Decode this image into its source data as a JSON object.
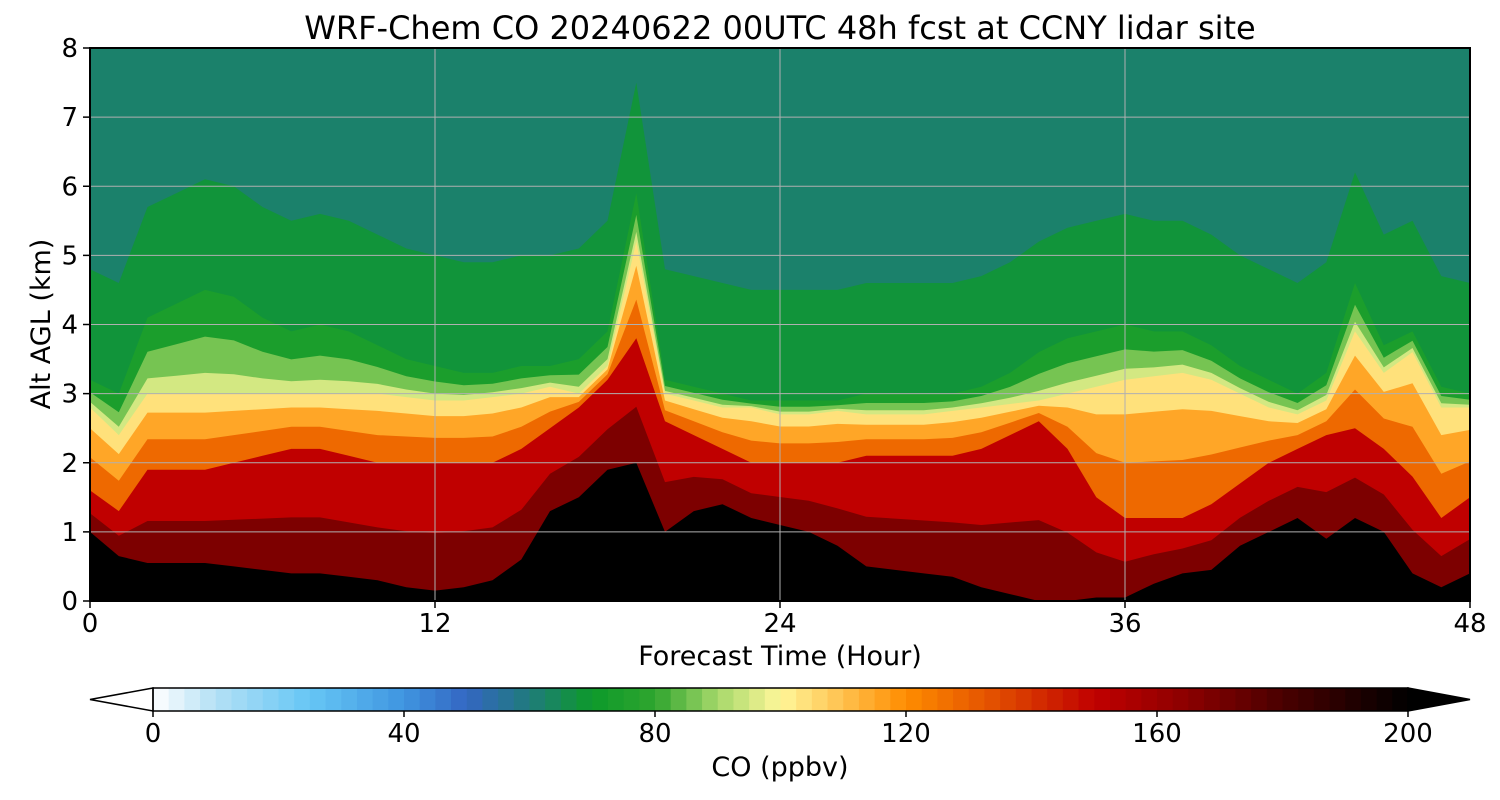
{
  "chart_data": {
    "type": "heatmap",
    "title": "WRF-Chem CO  20240622 00UTC 48h fcst at CCNY lidar site",
    "xlabel": "Forecast Time (Hour)",
    "ylabel": "Alt AGL (km)",
    "xlim": [
      0,
      48
    ],
    "ylim": [
      0,
      8
    ],
    "x_ticks": [
      "0",
      "12",
      "24",
      "36",
      "48"
    ],
    "y_ticks": [
      "0",
      "1",
      "2",
      "3",
      "4",
      "5",
      "6",
      "7",
      "8"
    ],
    "grid": true,
    "colorbar": {
      "label": "CO  (ppbv)",
      "range": [
        0,
        200
      ],
      "ticks": [
        "0",
        "40",
        "80",
        "120",
        "160",
        "200"
      ],
      "extend": "both",
      "stops": [
        {
          "value": 0,
          "color": "#ffffff"
        },
        {
          "value": 10,
          "color": "#b3e0f5"
        },
        {
          "value": 25,
          "color": "#66c6f5"
        },
        {
          "value": 40,
          "color": "#3f95e0"
        },
        {
          "value": 50,
          "color": "#3366c2"
        },
        {
          "value": 60,
          "color": "#1f7b7b"
        },
        {
          "value": 70,
          "color": "#0d9a2a"
        },
        {
          "value": 80,
          "color": "#2fa52f"
        },
        {
          "value": 90,
          "color": "#a6d86a"
        },
        {
          "value": 100,
          "color": "#fff79a"
        },
        {
          "value": 110,
          "color": "#ffc04d"
        },
        {
          "value": 120,
          "color": "#ff8c00"
        },
        {
          "value": 135,
          "color": "#e04a00"
        },
        {
          "value": 150,
          "color": "#c00000"
        },
        {
          "value": 165,
          "color": "#8a0000"
        },
        {
          "value": 180,
          "color": "#4a0000"
        },
        {
          "value": 200,
          "color": "#000000"
        }
      ]
    },
    "field": {
      "x_hours": [
        0,
        1,
        2,
        3,
        4,
        5,
        6,
        7,
        8,
        9,
        10,
        11,
        12,
        13,
        14,
        15,
        16,
        17,
        18,
        19,
        20,
        21,
        22,
        23,
        24,
        25,
        26,
        27,
        28,
        29,
        30,
        31,
        32,
        33,
        34,
        35,
        36,
        37,
        38,
        39,
        40,
        41,
        42,
        43,
        44,
        45,
        46,
        47,
        48
      ],
      "black_top_km": [
        1.0,
        0.65,
        0.55,
        0.55,
        0.55,
        0.5,
        0.45,
        0.4,
        0.4,
        0.35,
        0.3,
        0.2,
        0.15,
        0.2,
        0.3,
        0.6,
        1.3,
        1.5,
        1.9,
        2.0,
        1.0,
        1.3,
        1.4,
        1.2,
        1.1,
        1.0,
        0.8,
        0.5,
        0.45,
        0.4,
        0.35,
        0.2,
        0.1,
        0.0,
        0.0,
        0.05,
        0.05,
        0.25,
        0.4,
        0.45,
        0.8,
        1.0,
        1.2,
        0.9,
        1.2,
        1.0,
        0.4,
        0.2,
        0.4
      ],
      "red_top_km": [
        1.6,
        1.3,
        1.9,
        1.9,
        1.9,
        2.0,
        2.1,
        2.2,
        2.2,
        2.1,
        2.0,
        2.0,
        2.0,
        2.0,
        2.0,
        2.2,
        2.5,
        2.8,
        3.2,
        3.8,
        2.6,
        2.4,
        2.2,
        2.0,
        2.0,
        2.0,
        2.0,
        2.1,
        2.1,
        2.1,
        2.1,
        2.2,
        2.4,
        2.6,
        2.2,
        1.5,
        1.2,
        1.2,
        1.2,
        1.4,
        1.7,
        2.0,
        2.2,
        2.4,
        2.5,
        2.2,
        1.8,
        1.2,
        1.5
      ],
      "yellow_top_km": [
        2.8,
        2.4,
        3.0,
        3.0,
        3.0,
        3.0,
        3.0,
        3.0,
        3.0,
        3.0,
        3.0,
        2.95,
        2.9,
        2.9,
        2.95,
        3.0,
        3.1,
        3.0,
        3.4,
        5.2,
        3.0,
        2.9,
        2.8,
        2.8,
        2.7,
        2.7,
        2.75,
        2.7,
        2.7,
        2.7,
        2.75,
        2.8,
        2.85,
        2.9,
        3.0,
        3.1,
        3.2,
        3.25,
        3.3,
        3.2,
        3.0,
        2.8,
        2.7,
        2.9,
        3.9,
        3.3,
        3.6,
        2.8,
        2.8
      ],
      "green_top_km": [
        3.2,
        3.0,
        4.1,
        4.3,
        4.5,
        4.4,
        4.1,
        3.9,
        4.0,
        3.9,
        3.7,
        3.5,
        3.4,
        3.3,
        3.3,
        3.4,
        3.4,
        3.5,
        3.9,
        5.9,
        3.2,
        3.1,
        3.0,
        2.9,
        2.9,
        2.9,
        2.9,
        3.0,
        3.0,
        3.0,
        3.0,
        3.1,
        3.3,
        3.6,
        3.8,
        3.9,
        4.0,
        3.9,
        3.9,
        3.7,
        3.4,
        3.2,
        3.0,
        3.3,
        4.6,
        3.7,
        3.9,
        3.1,
        3.0
      ]
    }
  }
}
